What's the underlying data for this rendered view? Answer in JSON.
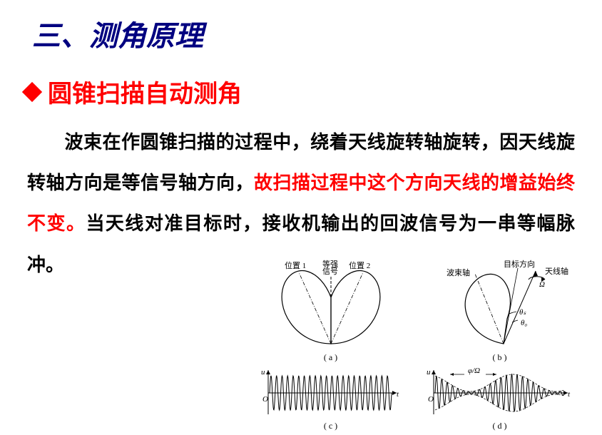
{
  "section_title": "三、测角原理",
  "subtitle": "圆锥扫描自动测角",
  "body": {
    "part1": "波束在作圆锥扫描的过程中，绕着天线旋转轴旋转，因天线旋转轴方向是等信号轴方向，",
    "part2_red": "故扫描过程中这个方向天线的增益始终不变。",
    "part3": "当天线对准目标时，接收机输出的回波信号为一串等幅脉冲。"
  },
  "colors": {
    "title": "#000080",
    "accent": "#ff0000",
    "text": "#000000",
    "diagram_stroke": "#000000"
  },
  "diagrams": {
    "a": {
      "caption": "( a )",
      "label_left": "位置 1",
      "label_center": "等强信号",
      "label_right": "位置 2"
    },
    "b": {
      "caption": "( b )",
      "label_beam": "波束轴",
      "label_target": "目标方向",
      "label_antenna": "天线轴",
      "label_omega": "Ω",
      "label_theta_s": "θₛ",
      "label_theta_0": "θ₀"
    },
    "c": {
      "caption": "( c )",
      "axis_u": "u",
      "axis_t": "t",
      "axis_origin": "O"
    },
    "d": {
      "caption": "( d )",
      "axis_u": "u",
      "axis_t": "t",
      "axis_origin": "O",
      "label_phi": "φ/Ω"
    }
  }
}
